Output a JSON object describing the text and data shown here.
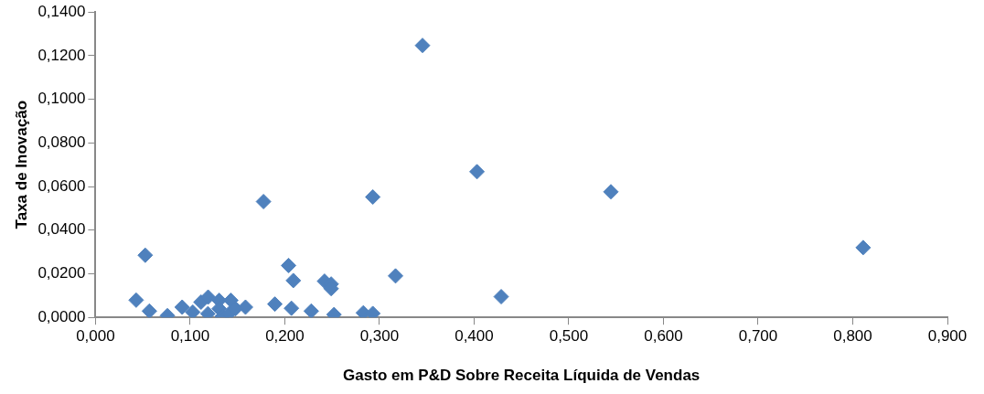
{
  "chart_data": {
    "type": "scatter",
    "xlabel": "Gasto em P&D Sobre Receita Líquida de Vendas",
    "ylabel": "Taxa de Inovação",
    "x": [
      0.3455,
      0.403,
      0.5445,
      0.811,
      0.293,
      0.1775,
      0.0526,
      0.204,
      0.209,
      0.317,
      0.242,
      0.249,
      0.249,
      0.4286,
      0.043,
      0.057,
      0.076,
      0.1895,
      0.207,
      0.228,
      0.252,
      0.283,
      0.293,
      0.0916,
      0.1028,
      0.1115,
      0.119,
      0.1188,
      0.1307,
      0.1307,
      0.134,
      0.143,
      0.141,
      0.1585,
      0.148
    ],
    "series": [
      {
        "color": "#4f81bd",
        "values": [
          0.1247,
          0.0668,
          0.0576,
          0.032,
          0.0552,
          0.0531,
          0.0285,
          0.0238,
          0.0169,
          0.019,
          0.0166,
          0.0153,
          0.0132,
          0.0095,
          0.0079,
          0.0029,
          0.0008,
          0.0061,
          0.0042,
          0.0029,
          0.0013,
          0.0021,
          0.0018,
          0.0047,
          0.0024,
          0.007,
          0.0093,
          0.0017,
          0.0078,
          0.004,
          0.0005,
          0.0078,
          0.0017,
          0.0047,
          0.004
        ]
      }
    ],
    "xlim": [
      0,
      0.9
    ],
    "xticks": [
      {
        "value": 0,
        "label": "0,000"
      },
      {
        "value": 0.1,
        "label": "0,100"
      },
      {
        "value": 0.2,
        "label": "0,200"
      },
      {
        "value": 0.3,
        "label": "0,300"
      },
      {
        "value": 0.4,
        "label": "0,400"
      },
      {
        "value": 0.5,
        "label": "0,500"
      },
      {
        "value": 0.6,
        "label": "0,600"
      },
      {
        "value": 0.7,
        "label": "0,700"
      },
      {
        "value": 0.8,
        "label": "0,800"
      },
      {
        "value": 0.9,
        "label": "0,900"
      }
    ],
    "ylim": [
      0,
      0.14
    ],
    "yticks": [
      {
        "value": 0,
        "label": "0,0000"
      },
      {
        "value": 0.02,
        "label": "0,0200"
      },
      {
        "value": 0.04,
        "label": "0,0400"
      },
      {
        "value": 0.06,
        "label": "0,0600"
      },
      {
        "value": 0.08,
        "label": "0,0800"
      },
      {
        "value": 0.1,
        "label": "0,1000"
      },
      {
        "value": 0.12,
        "label": "0,1200"
      },
      {
        "value": 0.14,
        "label": "0,1400"
      }
    ],
    "grid": false,
    "legend": false,
    "marker": "diamond"
  }
}
